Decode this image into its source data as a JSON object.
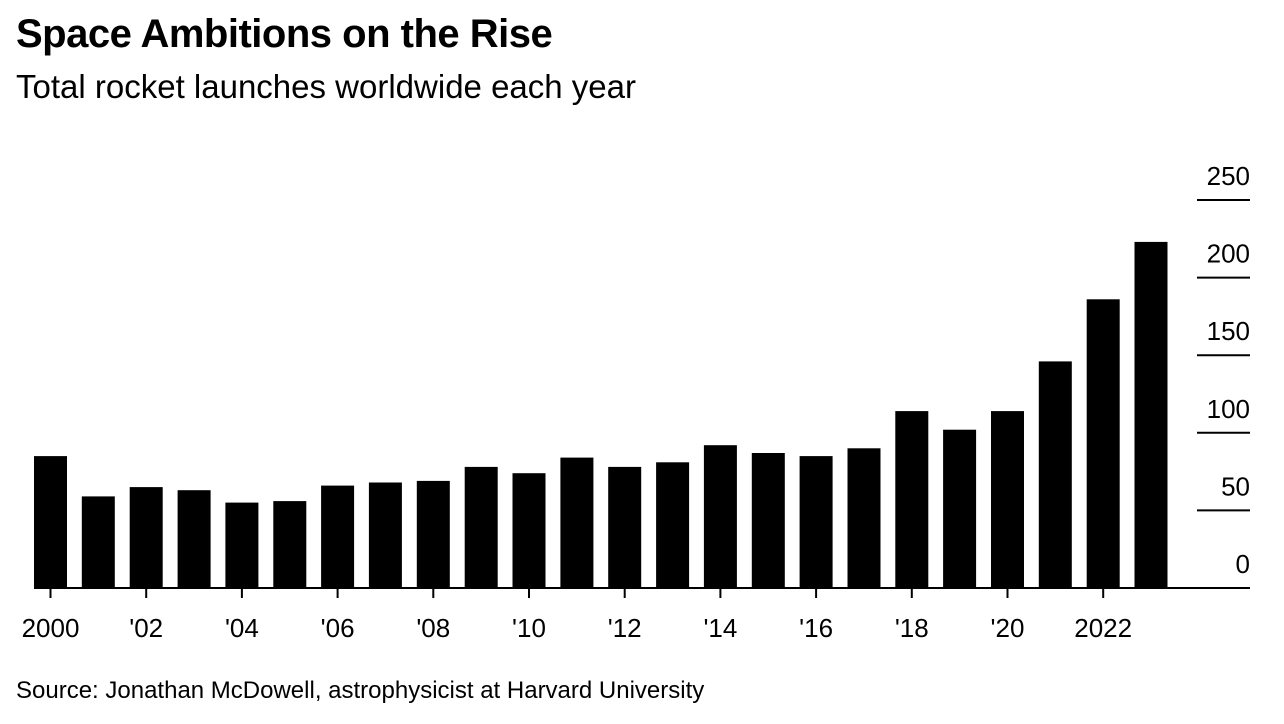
{
  "header": {
    "title": "Space Ambitions on the Rise",
    "subtitle": "Total rocket launches worldwide each year"
  },
  "footer": {
    "source": "Source: Jonathan McDowell, astrophysicist at Harvard University"
  },
  "colors": {
    "bar": "#000000",
    "axis": "#000000",
    "background": "#ffffff"
  },
  "chart_data": {
    "type": "bar",
    "title": "Space Ambitions on the Rise",
    "subtitle": "Total rocket launches worldwide each year",
    "xlabel": "",
    "ylabel": "",
    "categories": [
      "2000",
      "2001",
      "2002",
      "2003",
      "2004",
      "2005",
      "2006",
      "2007",
      "2008",
      "2009",
      "2010",
      "2011",
      "2012",
      "2013",
      "2014",
      "2015",
      "2016",
      "2017",
      "2018",
      "2019",
      "2020",
      "2021",
      "2022",
      "2023"
    ],
    "values": [
      85,
      59,
      65,
      63,
      55,
      56,
      66,
      68,
      69,
      78,
      74,
      84,
      78,
      81,
      92,
      87,
      85,
      90,
      114,
      102,
      114,
      146,
      186,
      223
    ],
    "x_tick_labels": [
      {
        "category": "2000",
        "label": "2000"
      },
      {
        "category": "2002",
        "label": "'02"
      },
      {
        "category": "2004",
        "label": "'04"
      },
      {
        "category": "2006",
        "label": "'06"
      },
      {
        "category": "2008",
        "label": "'08"
      },
      {
        "category": "2010",
        "label": "'10"
      },
      {
        "category": "2012",
        "label": "'12"
      },
      {
        "category": "2014",
        "label": "'14"
      },
      {
        "category": "2016",
        "label": "'16"
      },
      {
        "category": "2018",
        "label": "'18"
      },
      {
        "category": "2020",
        "label": "'20"
      },
      {
        "category": "2022",
        "label": "2022"
      }
    ],
    "y_ticks": [
      0,
      50,
      100,
      150,
      200,
      250
    ],
    "ylim": [
      0,
      250
    ],
    "grid": false,
    "y_axis_position": "right"
  }
}
